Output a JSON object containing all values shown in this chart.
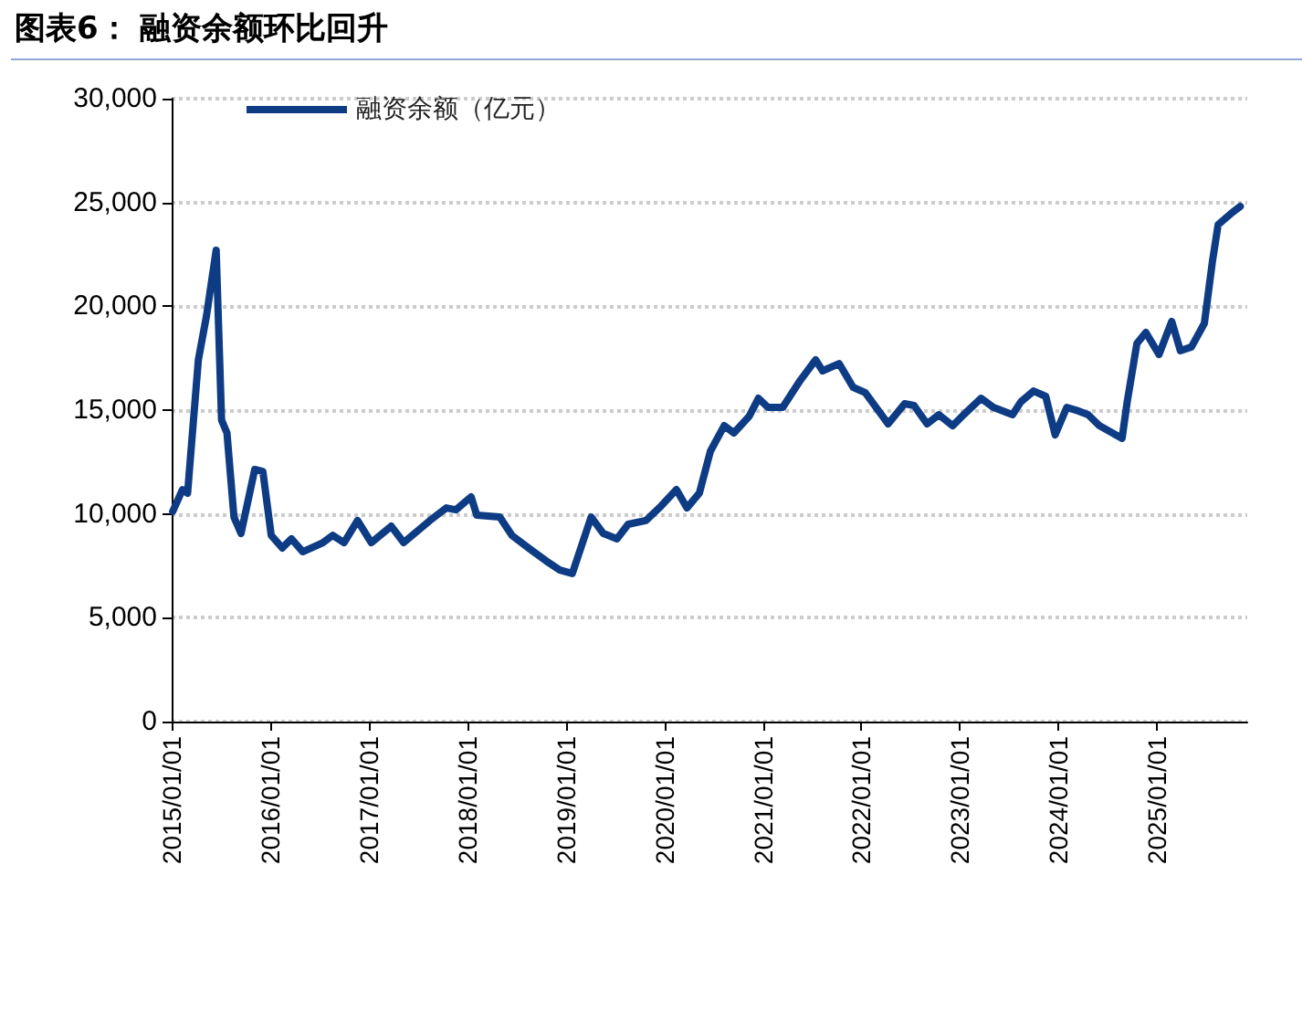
{
  "chart_data": {
    "type": "line",
    "title": "图表6：  融资余额环比回升",
    "x": [
      "2015-01-05",
      "2015-02-10",
      "2015-03-01",
      "2015-04-10",
      "2015-05-10",
      "2015-06-15",
      "2015-07-05",
      "2015-07-25",
      "2015-08-20",
      "2015-09-15",
      "2015-11-05",
      "2015-12-05",
      "2016-01-05",
      "2016-02-15",
      "2016-03-20",
      "2016-05-01",
      "2016-07-15",
      "2016-08-20",
      "2016-10-01",
      "2016-11-20",
      "2017-01-10",
      "2017-03-25",
      "2017-05-10",
      "2017-08-15",
      "2017-10-15",
      "2017-11-20",
      "2018-01-15",
      "2018-02-05",
      "2018-05-01",
      "2018-06-15",
      "2018-08-25",
      "2018-10-20",
      "2018-12-10",
      "2019-01-25",
      "2019-04-05",
      "2019-05-20",
      "2019-07-10",
      "2019-08-20",
      "2019-10-25",
      "2019-12-20",
      "2020-02-15",
      "2020-03-25",
      "2020-05-10",
      "2020-06-20",
      "2020-08-10",
      "2020-09-15",
      "2020-11-10",
      "2020-12-15",
      "2021-01-20",
      "2021-03-15",
      "2021-05-20",
      "2021-07-15",
      "2021-08-10",
      "2021-10-10",
      "2021-12-01",
      "2022-01-15",
      "2022-04-10",
      "2022-06-10",
      "2022-07-15",
      "2022-09-01",
      "2022-10-15",
      "2022-12-05",
      "2023-01-15",
      "2023-03-20",
      "2023-05-05",
      "2023-07-15",
      "2023-08-15",
      "2023-10-01",
      "2023-11-15",
      "2023-12-20",
      "2024-02-01",
      "2024-03-15",
      "2024-04-20",
      "2024-06-01",
      "2024-08-24",
      "2024-09-12",
      "2024-10-18",
      "2024-11-20",
      "2025-01-08",
      "2025-02-24",
      "2025-03-28",
      "2025-05-08",
      "2025-06-25",
      "2025-07-25",
      "2025-08-15",
      "2025-10-01",
      "2025-11-05"
    ],
    "series": [
      {
        "name": "融资余额（亿元）",
        "color": "#0d3c85",
        "values": [
          10120,
          11170,
          11000,
          17420,
          19530,
          22700,
          14520,
          13900,
          9850,
          9060,
          12140,
          12050,
          8970,
          8360,
          8800,
          8180,
          8620,
          8970,
          8620,
          9680,
          8620,
          9410,
          8620,
          9680,
          10290,
          10200,
          10820,
          9940,
          9850,
          8970,
          8270,
          7740,
          7300,
          7130,
          9850,
          9060,
          8800,
          9500,
          9680,
          10380,
          11170,
          10290,
          11000,
          13020,
          14250,
          13900,
          14690,
          15570,
          15130,
          15130,
          16450,
          17420,
          16890,
          17240,
          16100,
          15840,
          14340,
          15310,
          15220,
          14340,
          14780,
          14250,
          14780,
          15570,
          15130,
          14780,
          15400,
          15920,
          15660,
          13810,
          15130,
          14960,
          14780,
          14250,
          13640,
          15400,
          18210,
          18740,
          17680,
          19270,
          17860,
          18040,
          19180,
          22170,
          23930,
          24460,
          24810
        ]
      }
    ],
    "xlim": [
      "2015-01-01",
      "2025-12-01"
    ],
    "xticks": [
      {
        "value": "2015-01-01",
        "label": "2015/01/01"
      },
      {
        "value": "2016-01-01",
        "label": "2016/01/01"
      },
      {
        "value": "2017-01-01",
        "label": "2017/01/01"
      },
      {
        "value": "2018-01-01",
        "label": "2018/01/01"
      },
      {
        "value": "2019-01-01",
        "label": "2019/01/01"
      },
      {
        "value": "2020-01-01",
        "label": "2020/01/01"
      },
      {
        "value": "2021-01-01",
        "label": "2021/01/01"
      },
      {
        "value": "2022-01-01",
        "label": "2022/01/01"
      },
      {
        "value": "2023-01-01",
        "label": "2023/01/01"
      },
      {
        "value": "2024-01-01",
        "label": "2024/01/01"
      },
      {
        "value": "2025-01-01",
        "label": "2025/01/01"
      }
    ],
    "ylim": [
      0,
      30000
    ],
    "yticks": [
      {
        "value": 0,
        "label": "0"
      },
      {
        "value": 5000,
        "label": "5,000"
      },
      {
        "value": 10000,
        "label": "10,000"
      },
      {
        "value": 15000,
        "label": "15,000"
      },
      {
        "value": 20000,
        "label": "20,000"
      },
      {
        "value": 25000,
        "label": "25,000"
      },
      {
        "value": 30000,
        "label": "30,000"
      }
    ],
    "grid": "y",
    "legend": "top left",
    "marker": "none",
    "line_style": "solid"
  }
}
